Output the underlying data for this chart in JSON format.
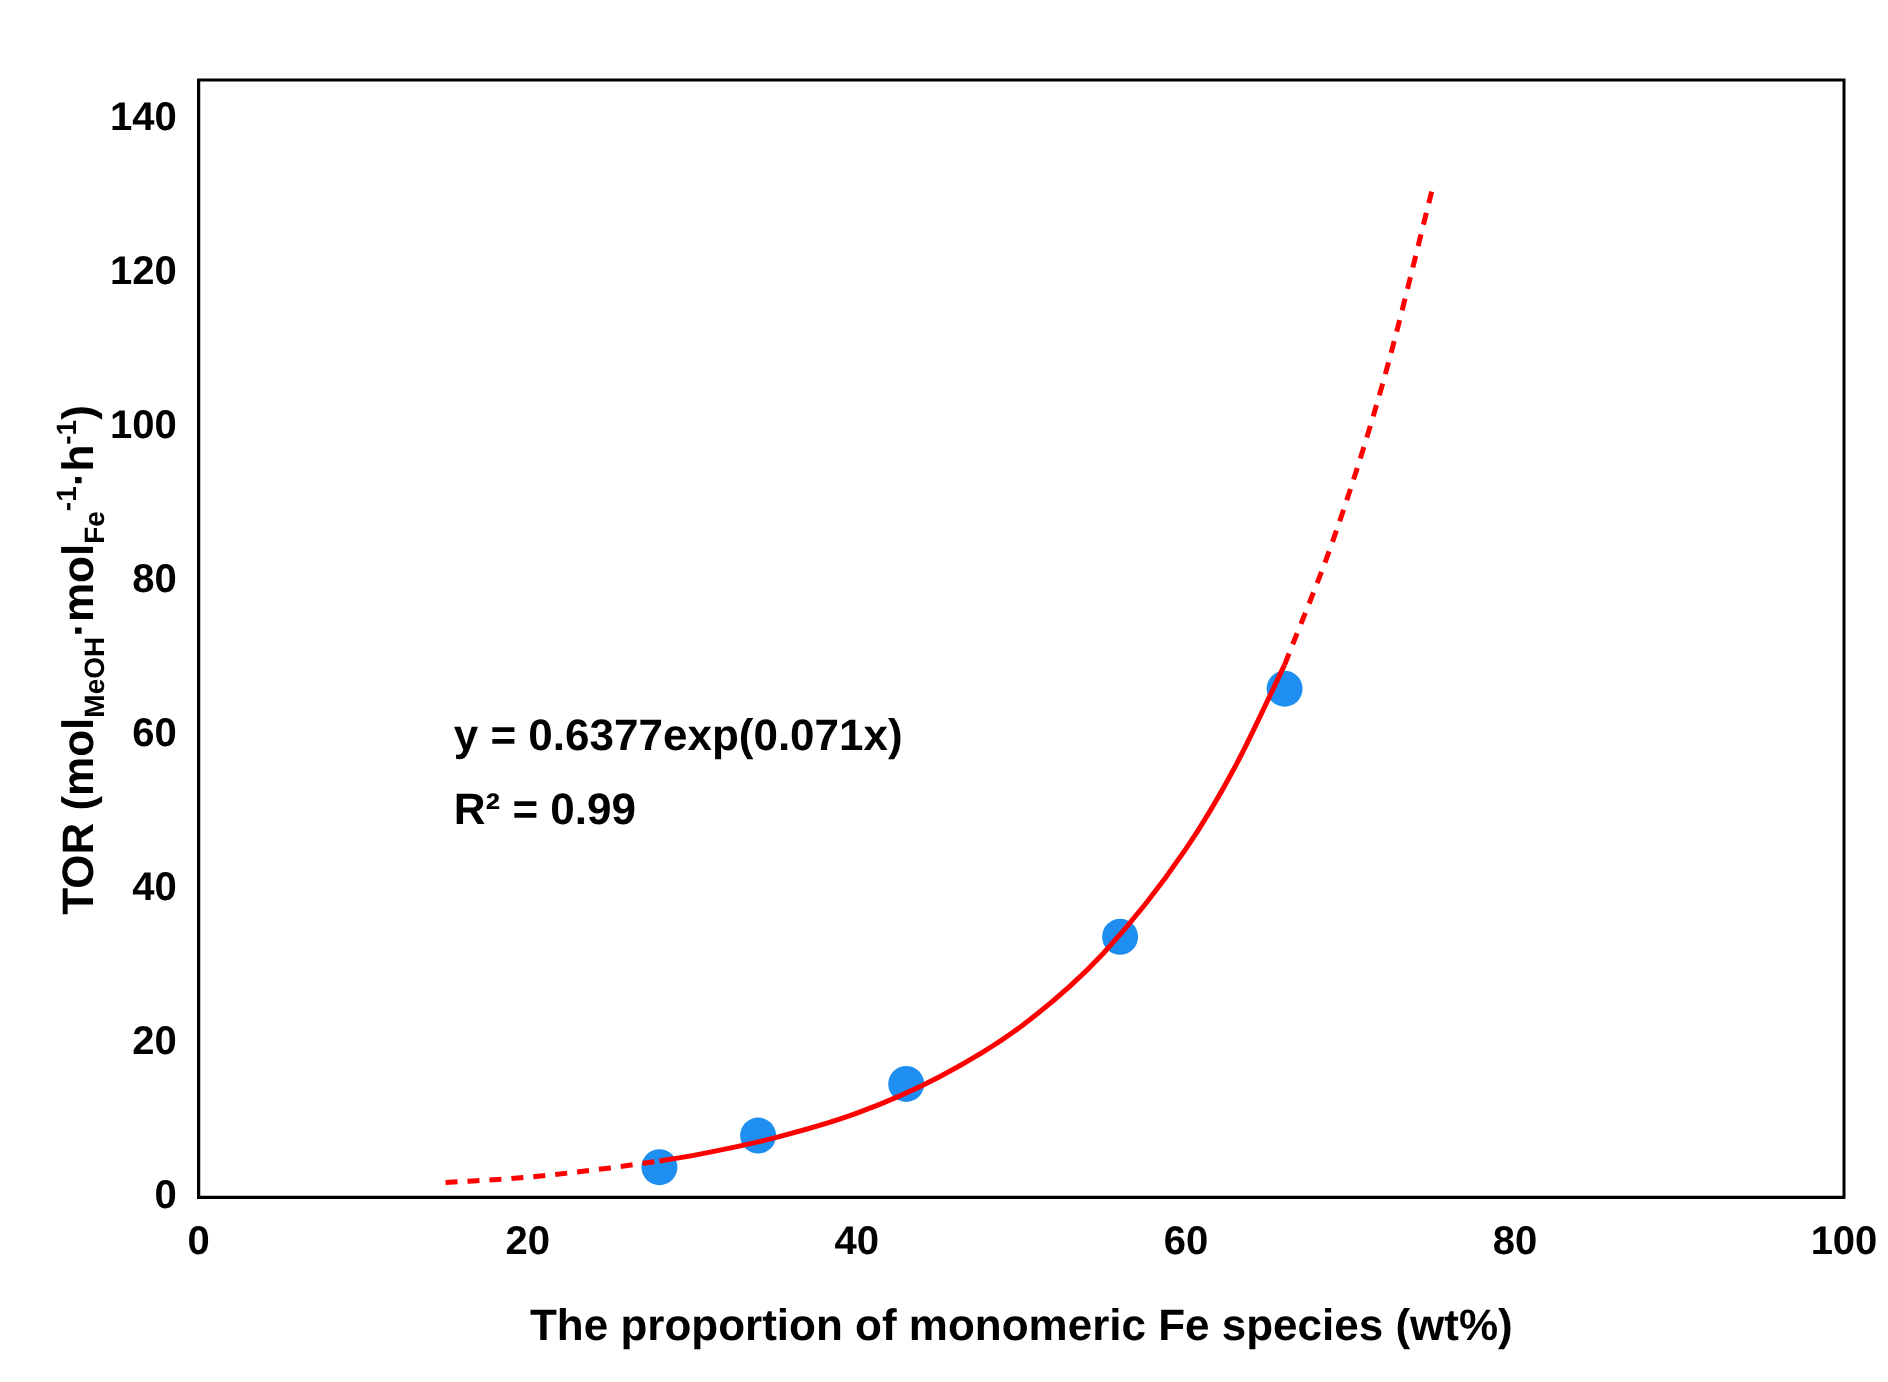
{
  "chart_data": {
    "type": "scatter",
    "xlabel": "The proportion of monomeric Fe species (wt%)",
    "ylabel": "TOR (mol$_{MeOH}$·mol$_{Fe}$$^{-1}$·h$^{-1}$)",
    "xlim": [
      0,
      100
    ],
    "xticks": [
      0,
      20,
      40,
      60,
      80,
      100
    ],
    "ylim": [
      0,
      145
    ],
    "yticks": [
      0,
      20,
      40,
      60,
      80,
      100,
      120,
      140
    ],
    "grid": false,
    "legend": false,
    "annotations": [
      "y = 0.6377exp(0.071x)",
      "R² = 0.99"
    ],
    "series": [
      {
        "type": "line",
        "color": "#ff0000",
        "line_style": "dashed",
        "marker": "none",
        "x": [
          15,
          20,
          25,
          28
        ],
        "values": [
          1.9,
          2.6,
          3.8,
          4.7
        ]
      },
      {
        "type": "line",
        "color": "#ff0000",
        "line_style": "solid",
        "marker": "none",
        "x": [
          28,
          30,
          35,
          40,
          45,
          50,
          55,
          60,
          63,
          66
        ],
        "values": [
          4.7,
          5.4,
          7.7,
          10.9,
          15.6,
          22.2,
          31.7,
          45.2,
          55.9,
          69.1
        ]
      },
      {
        "type": "line",
        "color": "#ff0000",
        "line_style": "dashed",
        "marker": "none",
        "x": [
          66,
          69,
          72,
          75
        ],
        "values": [
          69.1,
          85.6,
          105.9,
          131
        ]
      },
      {
        "type": "scatter",
        "color": "#1e8ff0",
        "marker": "circle",
        "x": [
          28,
          34,
          43,
          56,
          66
        ],
        "values": [
          3.9,
          8,
          14.7,
          33.8,
          66
        ]
      }
    ]
  }
}
